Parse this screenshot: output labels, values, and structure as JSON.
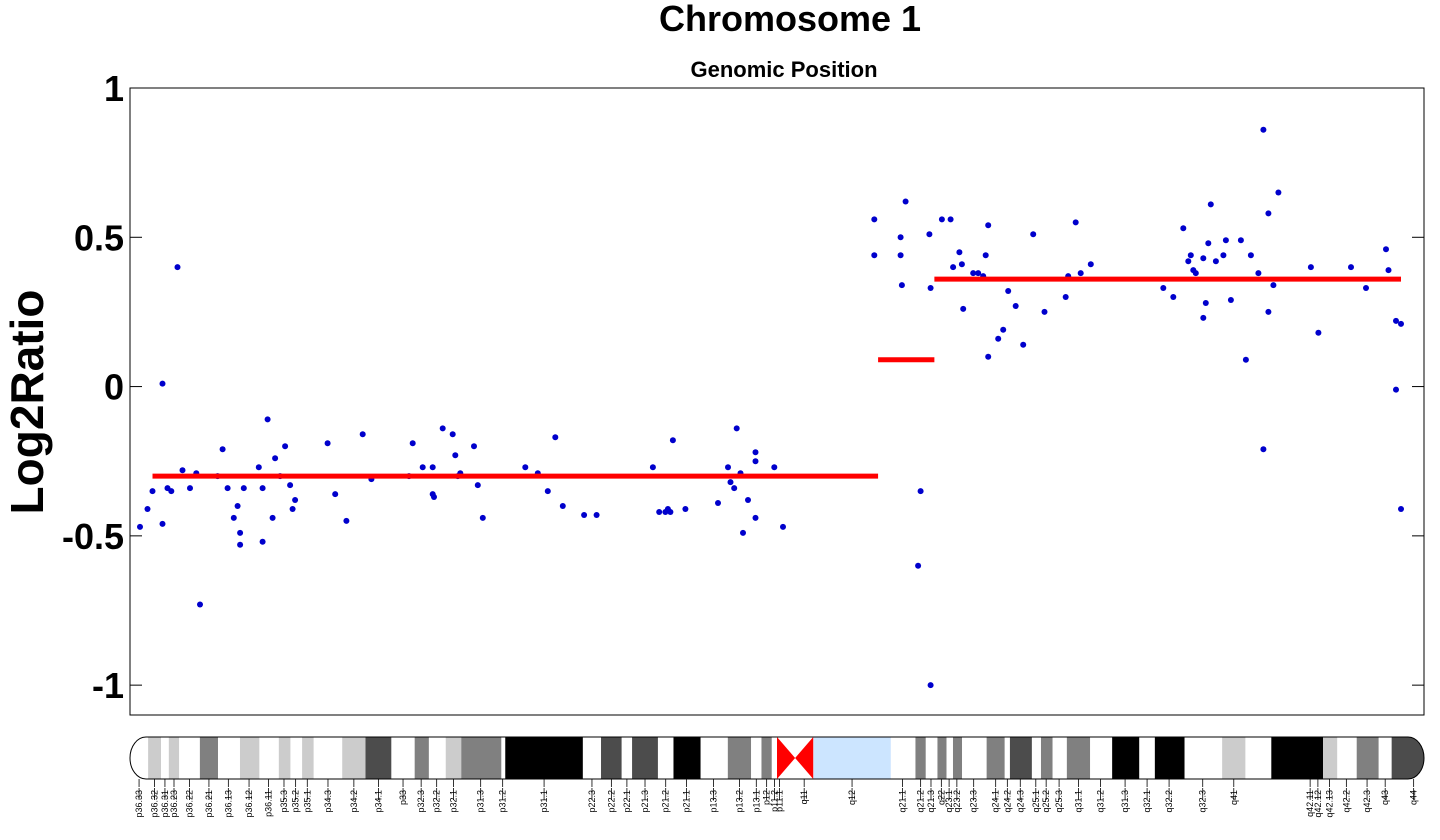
{
  "chart_data": {
    "type": "scatter",
    "title": "Chromosome 1",
    "subtitle": "Genomic Position",
    "ylabel": "Log2Ratio",
    "ylim": [
      -1.1,
      1.0
    ],
    "yticks": [
      -1,
      -0.5,
      0,
      0.5,
      1
    ],
    "ytick_labels": [
      "-1",
      "-0.5",
      "0",
      "0.5",
      "1"
    ],
    "xlim": [
      0,
      1000
    ],
    "grid": false,
    "points_color": "#0000cc",
    "segment_color": "#ff0000",
    "points": [
      [
        0,
        -0.47
      ],
      [
        6,
        -0.41
      ],
      [
        10,
        -0.35
      ],
      [
        18,
        0.01
      ],
      [
        18,
        -0.46
      ],
      [
        22,
        -0.34
      ],
      [
        25,
        -0.35
      ],
      [
        30,
        0.4
      ],
      [
        34,
        -0.28
      ],
      [
        40,
        -0.34
      ],
      [
        45,
        -0.29
      ],
      [
        48,
        -0.73
      ],
      [
        62,
        -0.3
      ],
      [
        66,
        -0.21
      ],
      [
        70,
        -0.34
      ],
      [
        75,
        -0.44
      ],
      [
        78,
        -0.4
      ],
      [
        80,
        -0.49
      ],
      [
        80,
        -0.53
      ],
      [
        83,
        -0.34
      ],
      [
        95,
        -0.27
      ],
      [
        98,
        -0.34
      ],
      [
        98,
        -0.52
      ],
      [
        102,
        -0.11
      ],
      [
        106,
        -0.44
      ],
      [
        108,
        -0.24
      ],
      [
        112,
        -0.3
      ],
      [
        116,
        -0.2
      ],
      [
        120,
        -0.33
      ],
      [
        122,
        -0.41
      ],
      [
        124,
        -0.38
      ],
      [
        150,
        -0.19
      ],
      [
        156,
        -0.36
      ],
      [
        165,
        -0.45
      ],
      [
        178,
        -0.16
      ],
      [
        185,
        -0.31
      ],
      [
        215,
        -0.3
      ],
      [
        218,
        -0.19
      ],
      [
        226,
        -0.27
      ],
      [
        234,
        -0.27
      ],
      [
        234,
        -0.36
      ],
      [
        235,
        -0.37
      ],
      [
        242,
        -0.14
      ],
      [
        250,
        -0.16
      ],
      [
        252,
        -0.23
      ],
      [
        254,
        -0.3
      ],
      [
        256,
        -0.29
      ],
      [
        267,
        -0.2
      ],
      [
        270,
        -0.33
      ],
      [
        274,
        -0.44
      ],
      [
        308,
        -0.27
      ],
      [
        318,
        -0.29
      ],
      [
        326,
        -0.35
      ],
      [
        332,
        -0.17
      ],
      [
        338,
        -0.4
      ],
      [
        355,
        -0.43
      ],
      [
        365,
        -0.43
      ],
      [
        410,
        -0.27
      ],
      [
        415,
        -0.42
      ],
      [
        420,
        -0.42
      ],
      [
        422,
        -0.41
      ],
      [
        424,
        -0.42
      ],
      [
        426,
        -0.18
      ],
      [
        436,
        -0.41
      ],
      [
        462,
        -0.39
      ],
      [
        470,
        -0.27
      ],
      [
        472,
        -0.32
      ],
      [
        475,
        -0.34
      ],
      [
        477,
        -0.14
      ],
      [
        480,
        -0.29
      ],
      [
        482,
        -0.49
      ],
      [
        486,
        -0.38
      ],
      [
        492,
        -0.44
      ],
      [
        492,
        -0.22
      ],
      [
        492,
        -0.25
      ],
      [
        507,
        -0.27
      ],
      [
        514,
        -0.47
      ],
      [
        587,
        0.56
      ],
      [
        587,
        0.44
      ],
      [
        608,
        0.5
      ],
      [
        608,
        0.44
      ],
      [
        609,
        0.34
      ],
      [
        612,
        0.62
      ],
      [
        622,
        -0.6
      ],
      [
        624,
        -0.35
      ],
      [
        631,
        0.51
      ],
      [
        632,
        0.33
      ],
      [
        632,
        -1.0
      ],
      [
        641,
        0.56
      ],
      [
        648,
        0.56
      ],
      [
        650,
        0.4
      ],
      [
        655,
        0.45
      ],
      [
        657,
        0.41
      ],
      [
        658,
        0.26
      ],
      [
        666,
        0.38
      ],
      [
        670,
        0.38
      ],
      [
        674,
        0.37
      ],
      [
        676,
        0.44
      ],
      [
        678,
        0.54
      ],
      [
        678,
        0.1
      ],
      [
        686,
        0.16
      ],
      [
        690,
        0.19
      ],
      [
        694,
        0.32
      ],
      [
        700,
        0.27
      ],
      [
        706,
        0.14
      ],
      [
        714,
        0.51
      ],
      [
        723,
        0.25
      ],
      [
        740,
        0.3
      ],
      [
        742,
        0.37
      ],
      [
        748,
        0.55
      ],
      [
        752,
        0.38
      ],
      [
        760,
        0.41
      ],
      [
        818,
        0.33
      ],
      [
        826,
        0.3
      ],
      [
        834,
        0.53
      ],
      [
        838,
        0.42
      ],
      [
        840,
        0.44
      ],
      [
        842,
        0.39
      ],
      [
        844,
        0.38
      ],
      [
        850,
        0.43
      ],
      [
        850,
        0.23
      ],
      [
        852,
        0.28
      ],
      [
        854,
        0.48
      ],
      [
        856,
        0.61
      ],
      [
        860,
        0.42
      ],
      [
        866,
        0.44
      ],
      [
        868,
        0.49
      ],
      [
        872,
        0.29
      ],
      [
        880,
        0.49
      ],
      [
        884,
        0.09
      ],
      [
        888,
        0.44
      ],
      [
        894,
        0.38
      ],
      [
        898,
        0.86
      ],
      [
        898,
        -0.21
      ],
      [
        902,
        0.58
      ],
      [
        902,
        0.25
      ],
      [
        906,
        0.34
      ],
      [
        910,
        0.65
      ],
      [
        936,
        0.4
      ],
      [
        942,
        0.18
      ],
      [
        968,
        0.4
      ],
      [
        980,
        0.33
      ],
      [
        996,
        0.46
      ],
      [
        998,
        0.39
      ],
      [
        1004,
        0.22
      ],
      [
        1004,
        -0.01
      ],
      [
        1008,
        0.21
      ],
      [
        1008,
        -0.41
      ]
    ],
    "segments": [
      {
        "x_start": 10,
        "x_end": 590,
        "value": -0.3
      },
      {
        "x_start": 590,
        "x_end": 635,
        "value": 0.09
      },
      {
        "x_start": 635,
        "x_end": 1008,
        "value": 0.36
      }
    ],
    "ideogram": {
      "bands": [
        {
          "name": "p36.33",
          "start": 0,
          "end": 14,
          "stain": "gneg"
        },
        {
          "name": "p36.32",
          "start": 14,
          "end": 24,
          "stain": "gpos25"
        },
        {
          "name": "p36.31",
          "start": 24,
          "end": 30,
          "stain": "gneg"
        },
        {
          "name": "p36.23",
          "start": 30,
          "end": 38,
          "stain": "gpos25"
        },
        {
          "name": "p36.22",
          "start": 38,
          "end": 54,
          "stain": "gneg"
        },
        {
          "name": "p36.21",
          "start": 54,
          "end": 68,
          "stain": "gpos50"
        },
        {
          "name": "p36.13",
          "start": 68,
          "end": 85,
          "stain": "gneg"
        },
        {
          "name": "p36.12",
          "start": 85,
          "end": 100,
          "stain": "gpos25"
        },
        {
          "name": "p36.11",
          "start": 100,
          "end": 115,
          "stain": "gneg"
        },
        {
          "name": "p35.3",
          "start": 115,
          "end": 124,
          "stain": "gpos25"
        },
        {
          "name": "p35.2",
          "start": 124,
          "end": 133,
          "stain": "gneg"
        },
        {
          "name": "p35.1",
          "start": 133,
          "end": 142,
          "stain": "gpos25"
        },
        {
          "name": "p34.3",
          "start": 142,
          "end": 164,
          "stain": "gneg"
        },
        {
          "name": "p34.2",
          "start": 164,
          "end": 182,
          "stain": "gpos25"
        },
        {
          "name": "p34.1",
          "start": 182,
          "end": 202,
          "stain": "gpos75"
        },
        {
          "name": "p33",
          "start": 202,
          "end": 220,
          "stain": "gneg"
        },
        {
          "name": "p32.3",
          "start": 220,
          "end": 231,
          "stain": "gpos50"
        },
        {
          "name": "p32.2",
          "start": 231,
          "end": 244,
          "stain": "gneg"
        },
        {
          "name": "p32.1",
          "start": 244,
          "end": 256,
          "stain": "gpos25"
        },
        {
          "name": "p31.3",
          "start": 256,
          "end": 287,
          "stain": "gpos50"
        },
        {
          "name": "p31.2",
          "start": 287,
          "end": 290,
          "stain": "gneg"
        },
        {
          "name": "p31.1",
          "start": 290,
          "end": 350,
          "stain": "gpos100"
        },
        {
          "name": "p22.3",
          "start": 350,
          "end": 364,
          "stain": "gneg"
        },
        {
          "name": "p22.2",
          "start": 364,
          "end": 380,
          "stain": "gpos75"
        },
        {
          "name": "p22.1",
          "start": 380,
          "end": 388,
          "stain": "gneg"
        },
        {
          "name": "p21.3",
          "start": 388,
          "end": 408,
          "stain": "gpos75"
        },
        {
          "name": "p21.2",
          "start": 408,
          "end": 420,
          "stain": "gneg"
        },
        {
          "name": "p21.1",
          "start": 420,
          "end": 441,
          "stain": "gpos100"
        },
        {
          "name": "p13.3",
          "start": 441,
          "end": 462,
          "stain": "gneg"
        },
        {
          "name": "p13.2",
          "start": 462,
          "end": 480,
          "stain": "gpos50"
        },
        {
          "name": "p13.1",
          "start": 480,
          "end": 488,
          "stain": "gneg"
        },
        {
          "name": "p12",
          "start": 488,
          "end": 496,
          "stain": "gpos50"
        },
        {
          "name": "p11.2",
          "start": 496,
          "end": 500,
          "stain": "gneg"
        },
        {
          "name": "p11.1",
          "start": 500,
          "end": 515,
          "stain": "acen"
        },
        {
          "name": "q11",
          "start": 515,
          "end": 528,
          "stain": "acen"
        },
        {
          "name": "q12",
          "start": 528,
          "end": 588,
          "stain": "gvar"
        },
        {
          "name": "q21.1",
          "start": 588,
          "end": 607,
          "stain": "gneg"
        },
        {
          "name": "q21.2",
          "start": 607,
          "end": 615,
          "stain": "gpos50"
        },
        {
          "name": "q21.3",
          "start": 615,
          "end": 624,
          "stain": "gneg"
        },
        {
          "name": "q22",
          "start": 624,
          "end": 631,
          "stain": "gpos50"
        },
        {
          "name": "q23.1",
          "start": 631,
          "end": 636,
          "stain": "gneg"
        },
        {
          "name": "q23.2",
          "start": 636,
          "end": 643,
          "stain": "gpos50"
        },
        {
          "name": "q23.3",
          "start": 643,
          "end": 662,
          "stain": "gneg"
        },
        {
          "name": "q24.1",
          "start": 662,
          "end": 676,
          "stain": "gpos50"
        },
        {
          "name": "q24.2",
          "start": 676,
          "end": 680,
          "stain": "gneg"
        },
        {
          "name": "q24.3",
          "start": 680,
          "end": 697,
          "stain": "gpos75"
        },
        {
          "name": "q25.1",
          "start": 697,
          "end": 704,
          "stain": "gneg"
        },
        {
          "name": "q25.2",
          "start": 704,
          "end": 713,
          "stain": "gpos50"
        },
        {
          "name": "q25.3",
          "start": 713,
          "end": 724,
          "stain": "gneg"
        },
        {
          "name": "q31.1",
          "start": 724,
          "end": 742,
          "stain": "gpos50"
        },
        {
          "name": "q31.2",
          "start": 742,
          "end": 759,
          "stain": "gneg"
        },
        {
          "name": "q31.3",
          "start": 759,
          "end": 780,
          "stain": "gpos100"
        },
        {
          "name": "q32.1",
          "start": 780,
          "end": 792,
          "stain": "gneg"
        },
        {
          "name": "q32.2",
          "start": 792,
          "end": 815,
          "stain": "gpos100"
        },
        {
          "name": "q32.3",
          "start": 815,
          "end": 844,
          "stain": "gneg"
        },
        {
          "name": "q41",
          "start": 844,
          "end": 862,
          "stain": "gpos25"
        },
        {
          "name": "q42.11",
          "start": 862,
          "end": 882,
          "stain": "gneg"
        },
        {
          "name": "q42.12",
          "start": 882,
          "end": 922,
          "stain": "gpos100"
        },
        {
          "name": "q42.13",
          "start": 922,
          "end": 933,
          "stain": "gpos25"
        },
        {
          "name": "q42.2",
          "start": 933,
          "end": 948,
          "stain": "gneg"
        },
        {
          "name": "q42.3",
          "start": 948,
          "end": 965,
          "stain": "gpos50"
        },
        {
          "name": "q43",
          "start": 965,
          "end": 975,
          "stain": "gneg"
        },
        {
          "name": "q44",
          "start": 975,
          "end": 1000,
          "stain": "gpos75"
        }
      ],
      "label_positions": [
        {
          "name": "p36.33",
          "at": 7
        },
        {
          "name": "p36.32",
          "at": 19
        },
        {
          "name": "p36.31",
          "at": 27
        },
        {
          "name": "p36.23",
          "at": 34
        },
        {
          "name": "p36.22",
          "at": 46
        },
        {
          "name": "p36.21",
          "at": 61
        },
        {
          "name": "p36.13",
          "at": 76
        },
        {
          "name": "p36.12",
          "at": 92
        },
        {
          "name": "p36.11",
          "at": 107
        },
        {
          "name": "p35.3",
          "at": 119
        },
        {
          "name": "p35.2",
          "at": 128
        },
        {
          "name": "p35.1",
          "at": 137
        },
        {
          "name": "p34.3",
          "at": 153
        },
        {
          "name": "p34.2",
          "at": 173
        },
        {
          "name": "p34.1",
          "at": 192
        },
        {
          "name": "p33",
          "at": 211
        },
        {
          "name": "p32.3",
          "at": 225
        },
        {
          "name": "p32.2",
          "at": 237
        },
        {
          "name": "p32.1",
          "at": 250
        },
        {
          "name": "p31.3",
          "at": 271
        },
        {
          "name": "p31.2",
          "at": 288
        },
        {
          "name": "p31.1",
          "at": 320
        },
        {
          "name": "p22.3",
          "at": 357
        },
        {
          "name": "p22.2",
          "at": 372
        },
        {
          "name": "p22.1",
          "at": 384
        },
        {
          "name": "p21.3",
          "at": 398
        },
        {
          "name": "p21.2",
          "at": 414
        },
        {
          "name": "p21.1",
          "at": 430
        },
        {
          "name": "p13.3",
          "at": 451
        },
        {
          "name": "p13.2",
          "at": 471
        },
        {
          "name": "p13.1",
          "at": 484
        },
        {
          "name": "p12",
          "at": 492
        },
        {
          "name": "p11.2",
          "at": 498
        },
        {
          "name": "p11.1",
          "at": 502
        },
        {
          "name": "q11",
          "at": 521
        },
        {
          "name": "q12",
          "at": 558
        },
        {
          "name": "q21.1",
          "at": 597
        },
        {
          "name": "q21.2",
          "at": 611
        },
        {
          "name": "q21.3",
          "at": 619
        },
        {
          "name": "q22",
          "at": 627
        },
        {
          "name": "q23.1",
          "at": 633
        },
        {
          "name": "q23.2",
          "at": 639
        },
        {
          "name": "q23.3",
          "at": 652
        },
        {
          "name": "q24.1",
          "at": 669
        },
        {
          "name": "q24.2",
          "at": 678
        },
        {
          "name": "q24.3",
          "at": 688
        },
        {
          "name": "q25.1",
          "at": 700
        },
        {
          "name": "q25.2",
          "at": 708
        },
        {
          "name": "q25.3",
          "at": 718
        },
        {
          "name": "q31.1",
          "at": 733
        },
        {
          "name": "q31.2",
          "at": 750
        },
        {
          "name": "q31.3",
          "at": 769
        },
        {
          "name": "q32.1",
          "at": 786
        },
        {
          "name": "q32.2",
          "at": 803
        },
        {
          "name": "q32.3",
          "at": 829
        },
        {
          "name": "q41",
          "at": 853
        },
        {
          "name": "q42.11",
          "at": 912
        },
        {
          "name": "q42.12",
          "at": 918
        },
        {
          "name": "q42.13",
          "at": 927
        },
        {
          "name": "q42.2",
          "at": 940
        },
        {
          "name": "q42.3",
          "at": 956
        },
        {
          "name": "q43",
          "at": 970
        },
        {
          "name": "q44",
          "at": 992
        }
      ],
      "stain_colors": {
        "gneg": "#ffffff",
        "gpos25": "#cccccc",
        "gpos50": "#808080",
        "gpos75": "#4c4c4c",
        "gpos100": "#000000",
        "acen": "#ff0000",
        "gvar": "#cce5ff"
      }
    }
  }
}
